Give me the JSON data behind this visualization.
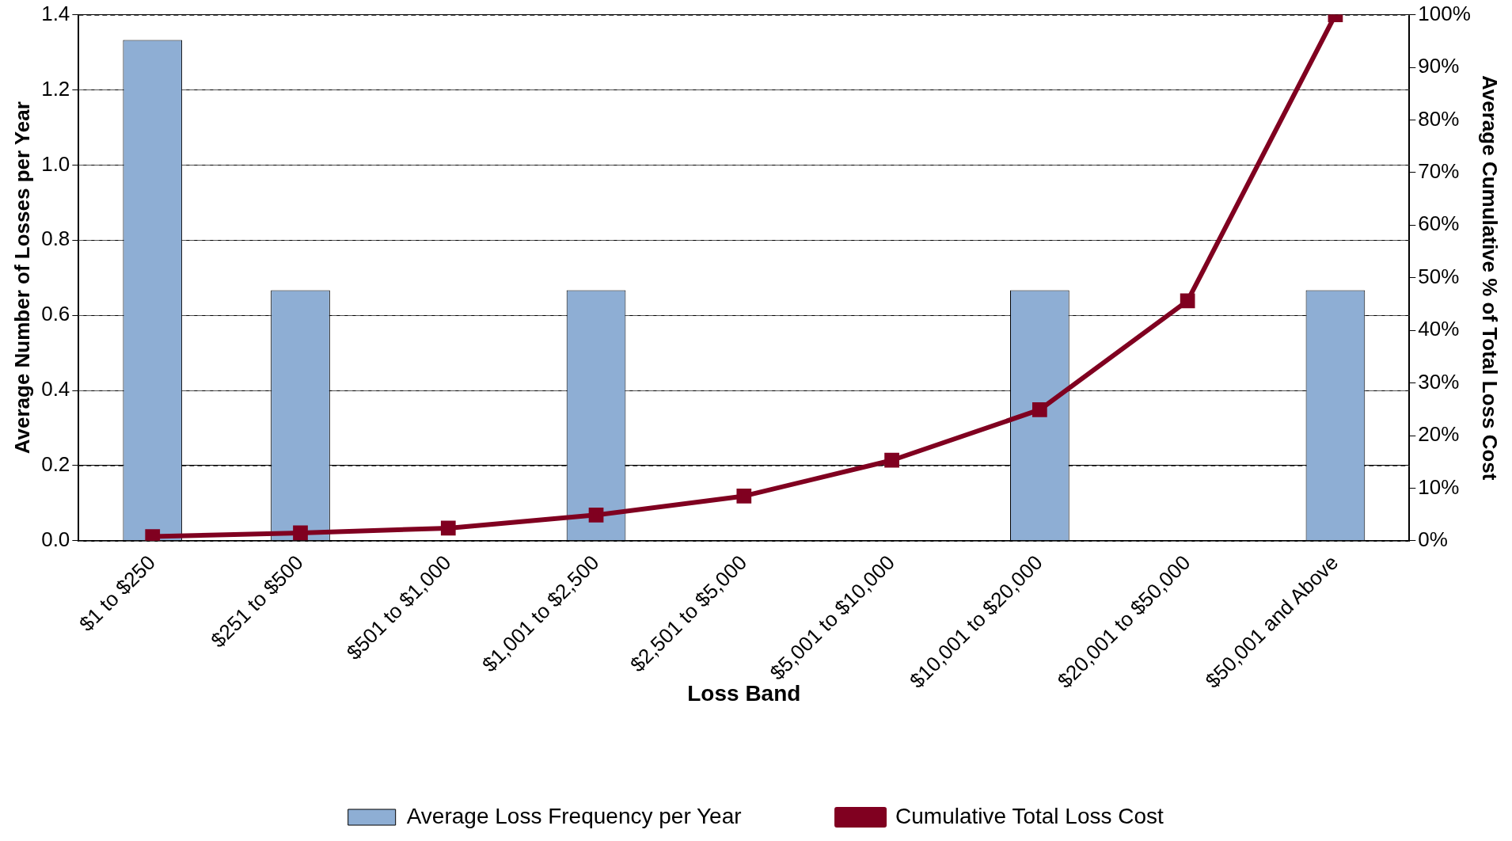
{
  "chart_data": {
    "type": "bar",
    "xlabel": "Loss Band",
    "ylabel": "Average Number of Losses per Year",
    "y2label": "Average Cumulative % of Total Loss Cost",
    "categories": [
      "$1 to $250",
      "$251 to $500",
      "$501 to $1,000",
      "$1,001 to $2,500",
      "$2,501 to $5,000",
      "$5,001 to $10,000",
      "$10,001 to $20,000",
      "$20,001 to $50,000",
      "$50,001 and Above"
    ],
    "series": [
      {
        "name": "Average Loss Frequency per Year",
        "color": "#8eaed4",
        "values": [
          1.333,
          0.667,
          0,
          0.667,
          0,
          0,
          0.667,
          0,
          0.667
        ]
      },
      {
        "name": "Cumulative Total Loss Cost",
        "type": "line",
        "axis": "y2",
        "color": "#800020",
        "marker": "square",
        "values": [
          0.8,
          1.5,
          2.4,
          4.9,
          8.5,
          15.3,
          24.9,
          45.6,
          100
        ]
      }
    ],
    "ylim": [
      0,
      1.4
    ],
    "yticks": [
      {
        "value": 0,
        "label": "0.0"
      },
      {
        "value": 0.2,
        "label": "0.2"
      },
      {
        "value": 0.4,
        "label": "0.4"
      },
      {
        "value": 0.6,
        "label": "0.6"
      },
      {
        "value": 0.8,
        "label": "0.8"
      },
      {
        "value": 1,
        "label": "1.0"
      },
      {
        "value": 1.2,
        "label": "1.2"
      },
      {
        "value": 1.4,
        "label": "1.4"
      }
    ],
    "y2lim": [
      0,
      100
    ],
    "y2ticks": [
      {
        "value": 0,
        "label": "0%"
      },
      {
        "value": 10,
        "label": "10%"
      },
      {
        "value": 20,
        "label": "20%"
      },
      {
        "value": 30,
        "label": "30%"
      },
      {
        "value": 40,
        "label": "40%"
      },
      {
        "value": 50,
        "label": "50%"
      },
      {
        "value": 60,
        "label": "60%"
      },
      {
        "value": 70,
        "label": "70%"
      },
      {
        "value": 80,
        "label": "80%"
      },
      {
        "value": 90,
        "label": "90%"
      },
      {
        "value": 100,
        "label": "100%"
      }
    ],
    "grid": "y",
    "legend": "bottom"
  }
}
